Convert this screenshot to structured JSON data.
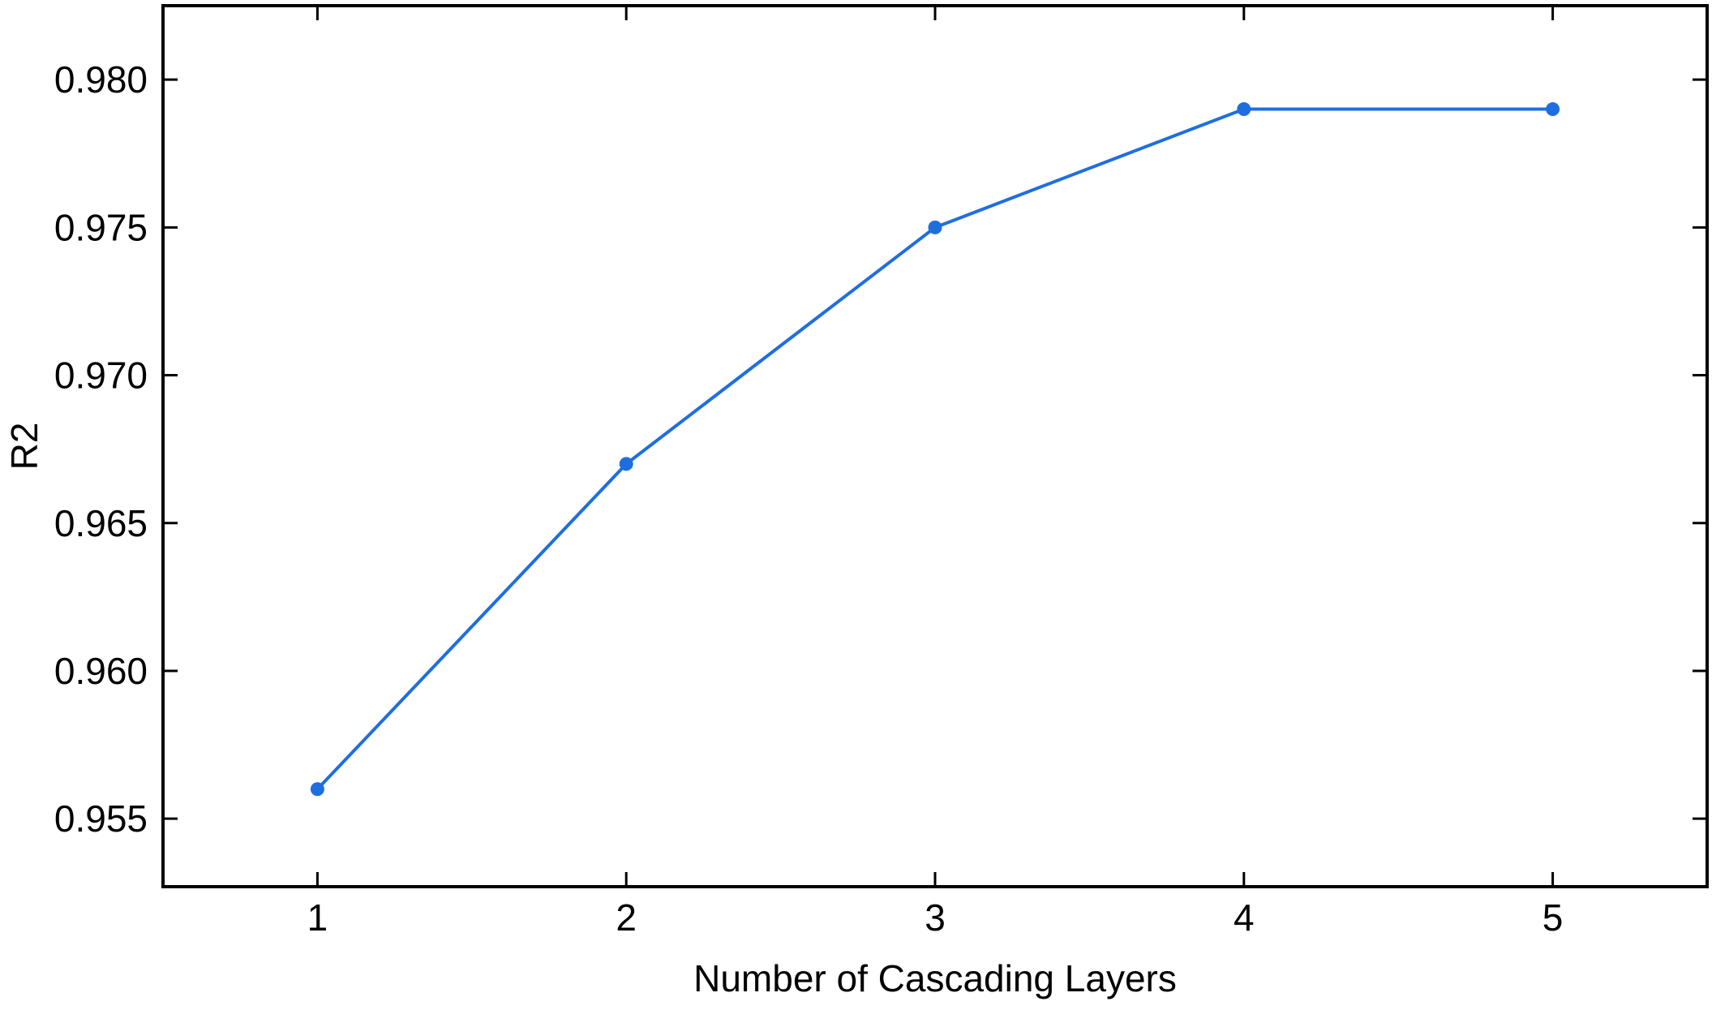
{
  "chart_data": {
    "type": "line",
    "title": "",
    "xlabel": "Number of Cascading Layers",
    "ylabel": "R2",
    "x": [
      1,
      2,
      3,
      4,
      5
    ],
    "xticks": [
      "1",
      "2",
      "3",
      "4",
      "5"
    ],
    "xlim": [
      0.5,
      5.5
    ],
    "yticks": [
      "0.955",
      "0.960",
      "0.965",
      "0.970",
      "0.975",
      "0.980"
    ],
    "ylim": [
      0.9527,
      0.9825
    ],
    "grid": false,
    "legend": "none",
    "series": [
      {
        "values": [
          0.956,
          0.967,
          0.975,
          0.979,
          0.979
        ],
        "color": "#1f6ee0",
        "marker": "circle"
      }
    ]
  }
}
